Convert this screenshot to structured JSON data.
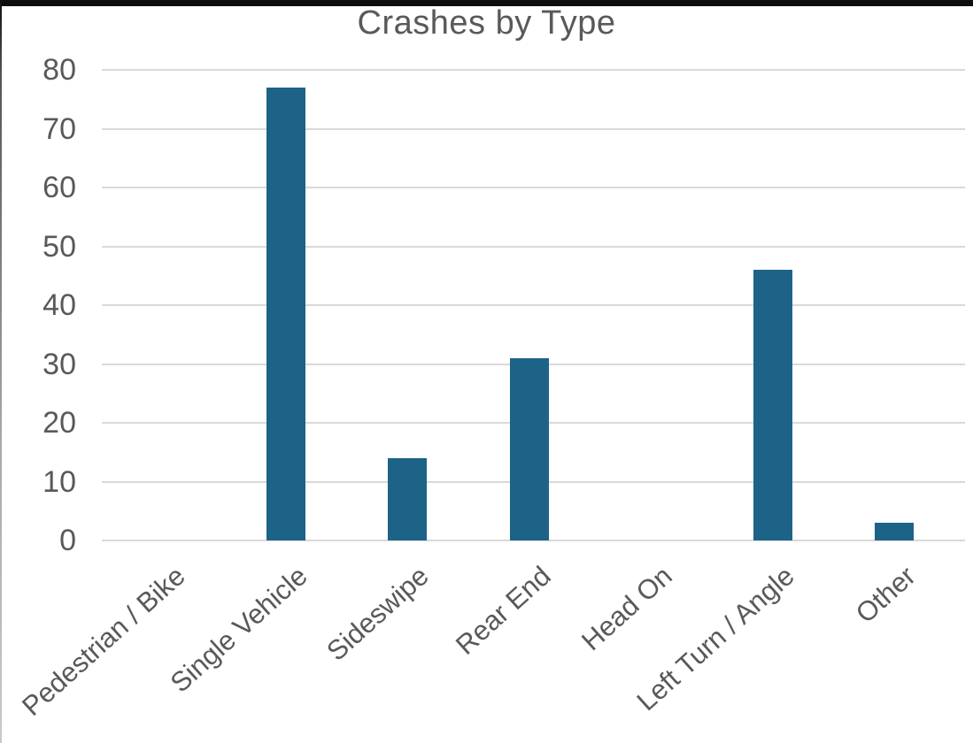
{
  "chart_data": {
    "type": "bar",
    "title": "Crashes by Type",
    "categories": [
      "Pedestrian / Bike",
      "Single Vehicle",
      "Sideswipe",
      "Rear End",
      "Head On",
      "Left Turn / Angle",
      "Other"
    ],
    "values": [
      0,
      77,
      14,
      31,
      0,
      46,
      3
    ],
    "xlabel": "",
    "ylabel": "",
    "ylim": [
      0,
      80
    ],
    "yticks": [
      0,
      10,
      20,
      30,
      40,
      50,
      60,
      70,
      80
    ],
    "grid": true,
    "legend_position": "none",
    "x_label_rotation_deg": -42,
    "colors": {
      "bar": "#1c6387",
      "gridline": "#d9d9d9",
      "tick_text": "#595959",
      "title_text": "#58595b",
      "top_strip": "#0e0e0e"
    }
  }
}
